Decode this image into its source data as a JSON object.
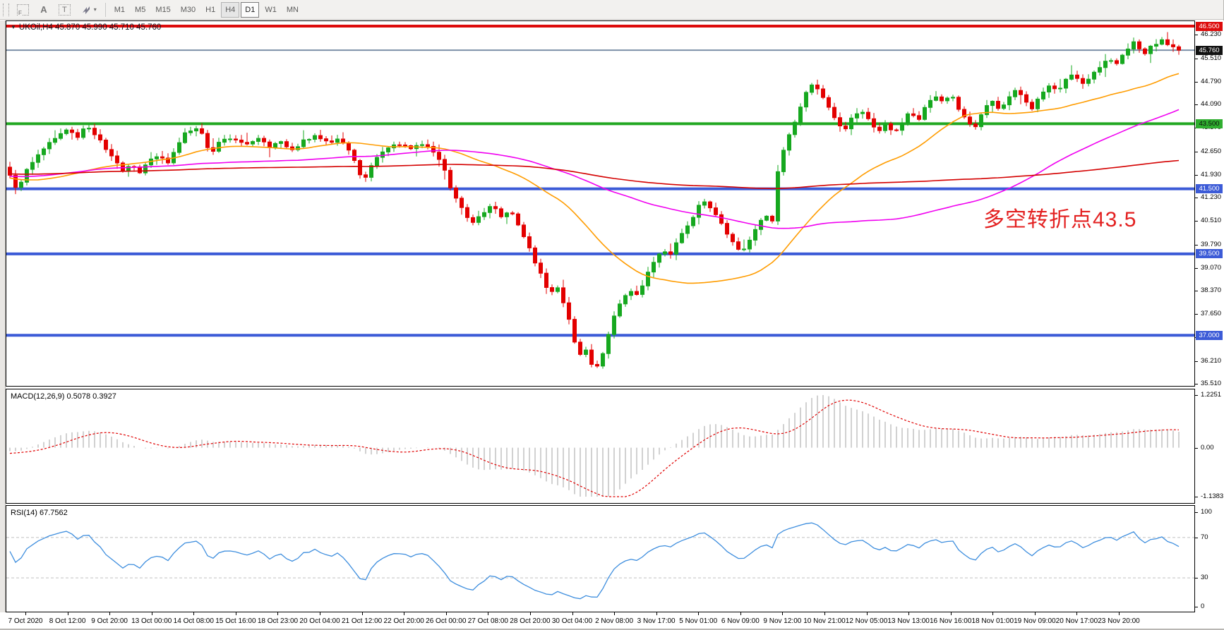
{
  "toolbar": {
    "grid_tool_label": "F",
    "font_tool_label": "A",
    "text_tool_label": "T",
    "caret_icon": "▾",
    "timeframes": [
      "M1",
      "M5",
      "M15",
      "M30",
      "H1",
      "H4",
      "D1",
      "W1",
      "MN"
    ],
    "chart_timeframe_highlight": "H4",
    "selected_timeframe": "D1"
  },
  "main_chart": {
    "symbol_triangle_icon": "▼",
    "title": "UKOil,H4 45.870 45.990 45.710 45.760",
    "annotation": "多空转折点43.5",
    "current_price": {
      "value": 45.76,
      "label": "45.760"
    },
    "levels": [
      {
        "value": 46.5,
        "color": "#dd0b0b",
        "width": 4
      },
      {
        "value": 43.5,
        "color": "#22a822",
        "width": 4
      },
      {
        "value": 41.5,
        "color": "#3c5bd7",
        "width": 4
      },
      {
        "value": 39.5,
        "color": "#3c5bd7",
        "width": 4
      },
      {
        "value": 37.0,
        "color": "#3c5bd7",
        "width": 4
      }
    ],
    "price_ticks": [
      {
        "value": 46.23,
        "label": "46.230"
      },
      {
        "value": 45.51,
        "label": "45.510"
      },
      {
        "value": 44.79,
        "label": "44.790"
      },
      {
        "value": 44.09,
        "label": "44.090"
      },
      {
        "value": 43.37,
        "label": "43.370"
      },
      {
        "value": 42.65,
        "label": "42.650"
      },
      {
        "value": 41.93,
        "label": "41.930"
      },
      {
        "value": 41.23,
        "label": "41.230"
      },
      {
        "value": 40.51,
        "label": "40.510"
      },
      {
        "value": 39.79,
        "label": "39.790"
      },
      {
        "value": 39.07,
        "label": "39.070"
      },
      {
        "value": 38.37,
        "label": "38.370"
      },
      {
        "value": 37.65,
        "label": "37.650"
      },
      {
        "value": 36.93,
        "label": "36.930"
      },
      {
        "value": 36.21,
        "label": "36.210"
      },
      {
        "value": 35.51,
        "label": "35.510"
      }
    ],
    "badges": [
      {
        "value": 46.5,
        "label": "46.500",
        "bg": "#dd0b0b",
        "fg": "#ffffff"
      },
      {
        "value": 45.76,
        "label": "45.760",
        "bg": "#111111",
        "fg": "#ffffff"
      },
      {
        "value": 43.5,
        "label": "43.500",
        "bg": "#2fae2f",
        "fg": "#0a0a0a"
      },
      {
        "value": 41.5,
        "label": "41.500",
        "bg": "#3c5bd7",
        "fg": "#ffffff"
      },
      {
        "value": 39.5,
        "label": "39.500",
        "bg": "#3c5bd7",
        "fg": "#ffffff"
      },
      {
        "value": 37.0,
        "label": "37.000",
        "bg": "#3c5bd7",
        "fg": "#ffffff"
      }
    ]
  },
  "macd_panel": {
    "label": "MACD(12,26,9) 0.5078 0.3927",
    "ticks": [
      {
        "value": 1.2251,
        "label": "1.2251"
      },
      {
        "value": 0,
        "label": "0.00"
      },
      {
        "value": -1.1383,
        "label": "-1.1383"
      }
    ]
  },
  "rsi_panel": {
    "label": "RSI(14) 67.7562",
    "ticks": [
      {
        "value": 100,
        "label": "100"
      },
      {
        "value": 70,
        "label": "70"
      },
      {
        "value": 30,
        "label": "30"
      },
      {
        "value": 0,
        "label": "0"
      }
    ],
    "levels": [
      70,
      30
    ]
  },
  "time_axis": {
    "labels": [
      "7 Oct 2020",
      "8 Oct 12:00",
      "9 Oct 20:00",
      "13 Oct 00:00",
      "14 Oct 08:00",
      "15 Oct 16:00",
      "18 Oct 23:00",
      "20 Oct 04:00",
      "21 Oct 12:00",
      "22 Oct 20:00",
      "26 Oct 00:00",
      "27 Oct 08:00",
      "28 Oct 20:00",
      "30 Oct 04:00",
      "2 Nov 08:00",
      "3 Nov 17:00",
      "5 Nov 01:00",
      "6 Nov 09:00",
      "9 Nov 12:00",
      "10 Nov 21:00",
      "12 Nov 05:00",
      "13 Nov 13:00",
      "16 Nov 16:00",
      "18 Nov 01:00",
      "19 Nov 09:00",
      "20 Nov 17:00",
      "23 Nov 20:00"
    ]
  },
  "colors": {
    "candle_up": "#16a81f",
    "candle_down": "#e30000",
    "ma_fast": "#ff9c00",
    "ma_mid": "#f000f0",
    "ma_slow": "#d40000",
    "macd_hist": "#bdbdbd",
    "macd_signal": "#e00000",
    "rsi_line": "#3e8ede",
    "rsi_levels": "#c0c0c0",
    "annotation": "#e32020",
    "current_price_line": "#7d90a8"
  },
  "chart_data": {
    "type": "candlestick",
    "symbol": "UKOil",
    "timeframe": "H4",
    "last_ohlc": {
      "open": 45.87,
      "high": 45.99,
      "low": 45.71,
      "close": 45.76
    },
    "y_range": [
      35.51,
      46.5
    ],
    "horizontal_levels": [
      46.5,
      43.5,
      41.5,
      39.5,
      37.0
    ],
    "x_range": [
      "7 Oct 2020",
      "23 Nov 20:00"
    ],
    "indicators": {
      "moving_averages": [
        {
          "period": 34,
          "color_key": "ma_fast"
        },
        {
          "period": 80,
          "color_key": "ma_mid"
        },
        {
          "period": 200,
          "color_key": "ma_slow"
        }
      ],
      "macd": {
        "fast": 12,
        "slow": 26,
        "signal": 9,
        "current_main": 0.5078,
        "current_signal": 0.3927,
        "scale_max": 1.2251,
        "scale_min": -1.1383
      },
      "rsi": {
        "period": 14,
        "current": 67.7562,
        "levels": [
          70,
          30
        ],
        "scale": [
          0,
          100
        ]
      }
    },
    "price_path": [
      [
        0.0,
        41.9
      ],
      [
        0.006,
        41.5
      ],
      [
        0.015,
        42.1
      ],
      [
        0.028,
        42.7
      ],
      [
        0.04,
        43.1
      ],
      [
        0.05,
        43.35
      ],
      [
        0.058,
        43.1
      ],
      [
        0.065,
        43.45
      ],
      [
        0.072,
        43.2
      ],
      [
        0.08,
        42.85
      ],
      [
        0.09,
        42.35
      ],
      [
        0.097,
        42.0
      ],
      [
        0.104,
        42.3
      ],
      [
        0.11,
        41.95
      ],
      [
        0.118,
        42.35
      ],
      [
        0.128,
        42.55
      ],
      [
        0.135,
        42.3
      ],
      [
        0.142,
        42.75
      ],
      [
        0.15,
        43.2
      ],
      [
        0.158,
        43.4
      ],
      [
        0.165,
        43.15
      ],
      [
        0.172,
        42.55
      ],
      [
        0.18,
        42.95
      ],
      [
        0.19,
        43.1
      ],
      [
        0.2,
        42.85
      ],
      [
        0.212,
        43.05
      ],
      [
        0.222,
        42.8
      ],
      [
        0.232,
        42.95
      ],
      [
        0.242,
        42.7
      ],
      [
        0.252,
        43.0
      ],
      [
        0.262,
        43.15
      ],
      [
        0.272,
        42.9
      ],
      [
        0.282,
        43.05
      ],
      [
        0.292,
        42.6
      ],
      [
        0.298,
        42.0
      ],
      [
        0.303,
        41.75
      ],
      [
        0.31,
        42.25
      ],
      [
        0.32,
        42.7
      ],
      [
        0.33,
        42.9
      ],
      [
        0.342,
        42.75
      ],
      [
        0.352,
        42.9
      ],
      [
        0.362,
        42.65
      ],
      [
        0.37,
        42.3
      ],
      [
        0.376,
        41.6
      ],
      [
        0.383,
        41.1
      ],
      [
        0.39,
        40.7
      ],
      [
        0.397,
        40.45
      ],
      [
        0.404,
        40.75
      ],
      [
        0.412,
        41.0
      ],
      [
        0.42,
        40.65
      ],
      [
        0.428,
        40.85
      ],
      [
        0.435,
        40.35
      ],
      [
        0.442,
        39.9
      ],
      [
        0.448,
        39.35
      ],
      [
        0.455,
        38.8
      ],
      [
        0.462,
        38.25
      ],
      [
        0.468,
        38.55
      ],
      [
        0.474,
        37.9
      ],
      [
        0.48,
        37.3
      ],
      [
        0.486,
        36.35
      ],
      [
        0.492,
        36.65
      ],
      [
        0.498,
        36.1
      ],
      [
        0.504,
        35.98
      ],
      [
        0.51,
        36.75
      ],
      [
        0.516,
        37.55
      ],
      [
        0.523,
        38.1
      ],
      [
        0.53,
        38.4
      ],
      [
        0.537,
        38.2
      ],
      [
        0.545,
        38.85
      ],
      [
        0.552,
        39.3
      ],
      [
        0.558,
        39.6
      ],
      [
        0.565,
        39.45
      ],
      [
        0.572,
        39.95
      ],
      [
        0.58,
        40.35
      ],
      [
        0.588,
        40.9
      ],
      [
        0.594,
        41.15
      ],
      [
        0.6,
        40.85
      ],
      [
        0.607,
        40.55
      ],
      [
        0.613,
        40.15
      ],
      [
        0.619,
        39.8
      ],
      [
        0.625,
        39.6
      ],
      [
        0.631,
        39.75
      ],
      [
        0.638,
        40.25
      ],
      [
        0.645,
        40.7
      ],
      [
        0.652,
        40.45
      ],
      [
        0.658,
        42.3
      ],
      [
        0.664,
        42.9
      ],
      [
        0.67,
        43.45
      ],
      [
        0.676,
        44.0
      ],
      [
        0.682,
        44.5
      ],
      [
        0.688,
        44.8
      ],
      [
        0.694,
        44.4
      ],
      [
        0.7,
        44.0
      ],
      [
        0.707,
        43.6
      ],
      [
        0.714,
        43.3
      ],
      [
        0.721,
        43.7
      ],
      [
        0.728,
        43.95
      ],
      [
        0.735,
        43.6
      ],
      [
        0.742,
        43.2
      ],
      [
        0.749,
        43.55
      ],
      [
        0.756,
        43.15
      ],
      [
        0.763,
        43.5
      ],
      [
        0.77,
        43.9
      ],
      [
        0.777,
        43.55
      ],
      [
        0.784,
        44.1
      ],
      [
        0.791,
        44.35
      ],
      [
        0.798,
        44.15
      ],
      [
        0.805,
        44.4
      ],
      [
        0.812,
        43.95
      ],
      [
        0.819,
        43.5
      ],
      [
        0.826,
        43.4
      ],
      [
        0.833,
        43.95
      ],
      [
        0.84,
        44.25
      ],
      [
        0.847,
        43.9
      ],
      [
        0.854,
        44.3
      ],
      [
        0.861,
        44.55
      ],
      [
        0.868,
        44.2
      ],
      [
        0.875,
        43.95
      ],
      [
        0.882,
        44.4
      ],
      [
        0.889,
        44.7
      ],
      [
        0.896,
        44.45
      ],
      [
        0.903,
        44.85
      ],
      [
        0.91,
        45.1
      ],
      [
        0.917,
        44.7
      ],
      [
        0.924,
        44.95
      ],
      [
        0.931,
        45.2
      ],
      [
        0.938,
        45.5
      ],
      [
        0.946,
        45.3
      ],
      [
        0.954,
        45.7
      ],
      [
        0.962,
        46.0
      ],
      [
        0.97,
        45.6
      ],
      [
        0.978,
        45.95
      ],
      [
        0.986,
        46.05
      ],
      [
        1.0,
        45.76
      ]
    ]
  }
}
